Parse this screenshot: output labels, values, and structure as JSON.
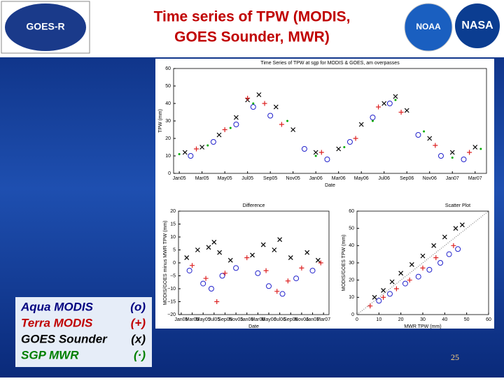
{
  "header": {
    "title_line1": "Time series of TPW (MODIS,",
    "title_line2": "GOES Sounder, MWR)",
    "logo_left": "GOES-R",
    "logo_mid": "NOAA",
    "logo_right": "NASA"
  },
  "legend": [
    {
      "name": "Aqua MODIS",
      "symbol": "(o)",
      "color": "#000080"
    },
    {
      "name": "Terra MODIS",
      "symbol": "(+)",
      "color": "#c00000"
    },
    {
      "name": "GOES Sounder",
      "symbol": "(x)",
      "color": "#000000"
    },
    {
      "name": "SGP MWR",
      "symbol": "(·)",
      "color": "#008000"
    }
  ],
  "page_number": "25",
  "chart_data": [
    {
      "type": "scatter",
      "title": "Time Series of TPW at sgp for MODIS & GOES, am overpasses",
      "x_label": "Date",
      "y_label": "TPW (mm)",
      "xlim": [
        -0.5,
        27
      ],
      "xticks": [
        {
          "value": 0,
          "label": "Jan05"
        },
        {
          "value": 2,
          "label": "Mar05"
        },
        {
          "value": 4,
          "label": "May05"
        },
        {
          "value": 6,
          "label": "Jul05"
        },
        {
          "value": 8,
          "label": "Sep05"
        },
        {
          "value": 10,
          "label": "Nov05"
        },
        {
          "value": 12,
          "label": "Jan06"
        },
        {
          "value": 14,
          "label": "Mar06"
        },
        {
          "value": 16,
          "label": "May06"
        },
        {
          "value": 18,
          "label": "Jul06"
        },
        {
          "value": 20,
          "label": "Sep06"
        },
        {
          "value": 22,
          "label": "Nov06"
        },
        {
          "value": 24,
          "label": "Jan07"
        },
        {
          "value": 26,
          "label": "Mar07"
        }
      ],
      "ylim": [
        0,
        60
      ],
      "yticks": [
        0,
        10,
        20,
        30,
        40,
        50,
        60
      ],
      "series": [
        {
          "marker": "x",
          "color": "#000000",
          "x": [
            0.5,
            2,
            3.5,
            5,
            6,
            7,
            8.5,
            10,
            12,
            14,
            16,
            18,
            19,
            20,
            22,
            24,
            26
          ],
          "values": [
            12,
            15,
            22,
            32,
            42,
            45,
            38,
            25,
            12,
            14,
            28,
            40,
            44,
            36,
            20,
            12,
            15
          ]
        },
        {
          "marker": "o",
          "color": "#2222cc",
          "x": [
            1,
            3,
            5,
            6.5,
            8,
            11,
            13,
            15,
            17,
            18.5,
            21,
            23,
            25
          ],
          "values": [
            10,
            18,
            28,
            38,
            33,
            14,
            8,
            18,
            32,
            40,
            22,
            10,
            8
          ]
        },
        {
          "marker": "+",
          "color": "#dd2222",
          "x": [
            1.5,
            4,
            6,
            7.5,
            9,
            12.5,
            15.5,
            17.5,
            19.5,
            22.5,
            25.5
          ],
          "values": [
            14,
            25,
            43,
            40,
            28,
            12,
            20,
            38,
            35,
            16,
            12
          ]
        },
        {
          "marker": ".",
          "color": "#00aa00",
          "x": [
            0,
            2.5,
            4.5,
            6.5,
            9.5,
            12,
            14.5,
            17,
            19,
            21.5,
            24,
            26.5
          ],
          "values": [
            11,
            16,
            26,
            40,
            30,
            10,
            15,
            30,
            42,
            24,
            9,
            14
          ]
        }
      ]
    },
    {
      "type": "scatter",
      "title": "Difference",
      "x_label": "Date",
      "y_label": "MODIS/GOES minus MWR TPW (mm)",
      "xlim": [
        -0.5,
        27
      ],
      "xticks": [
        {
          "value": 0,
          "label": "Jan05"
        },
        {
          "value": 2,
          "label": "Mar05"
        },
        {
          "value": 4,
          "label": "May05"
        },
        {
          "value": 6,
          "label": "Jul05"
        },
        {
          "value": 8,
          "label": "Sep05"
        },
        {
          "value": 10,
          "label": "Nov05"
        },
        {
          "value": 12,
          "label": "Jan06"
        },
        {
          "value": 14,
          "label": "Mar06"
        },
        {
          "value": 16,
          "label": "May06"
        },
        {
          "value": 18,
          "label": "Jul06"
        },
        {
          "value": 20,
          "label": "Sep06"
        },
        {
          "value": 22,
          "label": "Nov06"
        },
        {
          "value": 24,
          "label": "Jan07"
        },
        {
          "value": 26,
          "label": "Mar07"
        }
      ],
      "ylim": [
        -20,
        20
      ],
      "yticks": [
        {
          "value": -20,
          "label": "−20"
        },
        {
          "value": -15,
          "label": "−15"
        },
        {
          "value": -10,
          "label": "−10"
        },
        {
          "value": -5,
          "label": "−5"
        },
        0,
        5,
        10,
        15,
        20
      ],
      "series": [
        {
          "marker": "x",
          "color": "#000000",
          "x": [
            1,
            3,
            5,
            6,
            7,
            9,
            13,
            15,
            17,
            18,
            20,
            23,
            25
          ],
          "values": [
            2,
            5,
            6,
            8,
            4,
            1,
            3,
            7,
            5,
            9,
            2,
            4,
            1
          ]
        },
        {
          "marker": "o",
          "color": "#2222cc",
          "x": [
            1.5,
            4,
            5.5,
            7.5,
            10,
            14,
            16,
            18.5,
            21,
            24
          ],
          "values": [
            -3,
            -8,
            -10,
            -5,
            -2,
            -4,
            -9,
            -12,
            -6,
            -3
          ]
        },
        {
          "marker": "+",
          "color": "#dd2222",
          "x": [
            2,
            4.5,
            6.5,
            8,
            12,
            15.5,
            17.5,
            19.5,
            22,
            25.5
          ],
          "values": [
            -1,
            -6,
            -15,
            -4,
            2,
            -3,
            -11,
            -7,
            -2,
            0
          ]
        }
      ]
    },
    {
      "type": "scatter",
      "title": "Scatter Plot",
      "x_label": "MWR TPW (mm)",
      "y_label": "MODIS/GOES TPW (mm)",
      "one_to_one": true,
      "xlim": [
        0,
        60
      ],
      "xticks": [
        0,
        10,
        20,
        30,
        40,
        50,
        60
      ],
      "ylim": [
        0,
        60
      ],
      "yticks": [
        0,
        10,
        20,
        30,
        40,
        50,
        60
      ],
      "series": [
        {
          "marker": "x",
          "color": "#000000",
          "x": [
            8,
            12,
            16,
            20,
            25,
            30,
            35,
            40,
            45,
            48
          ],
          "values": [
            10,
            14,
            19,
            24,
            29,
            34,
            40,
            45,
            50,
            52
          ]
        },
        {
          "marker": "o",
          "color": "#2222cc",
          "x": [
            10,
            15,
            22,
            28,
            33,
            38,
            42,
            46
          ],
          "values": [
            8,
            12,
            18,
            22,
            26,
            30,
            35,
            38
          ]
        },
        {
          "marker": "+",
          "color": "#dd2222",
          "x": [
            6,
            12,
            18,
            24,
            30,
            36,
            44
          ],
          "values": [
            5,
            10,
            15,
            20,
            27,
            33,
            40
          ]
        }
      ]
    }
  ]
}
